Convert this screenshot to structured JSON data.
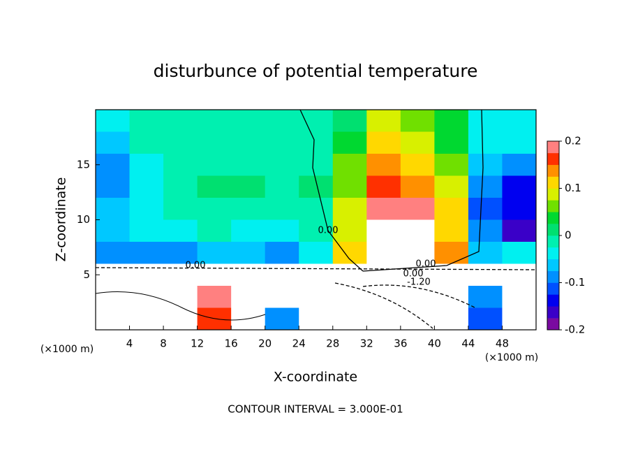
{
  "chart_data": {
    "type": "contour",
    "title": "disturbunce of potential temperature",
    "x_label": "X-coordinate",
    "y_label": "Z-coordinate",
    "x_unit": "(×1000 m)",
    "footer": "CONTOUR INTERVAL = 3.000E-01",
    "contour_labels": [
      "0.00",
      "0.00",
      "0.00",
      "0.00",
      "-1.20"
    ],
    "xlim": [
      0,
      52
    ],
    "ylim": [
      0,
      20
    ],
    "xticks": [
      4,
      8,
      12,
      16,
      20,
      24,
      28,
      32,
      36,
      40,
      44,
      48
    ],
    "yticks": [
      5,
      10,
      15
    ],
    "x": [
      2,
      6,
      10,
      14,
      18,
      22,
      26,
      30,
      34,
      38,
      42,
      46,
      50
    ],
    "y": [
      19,
      17,
      15,
      13,
      11,
      9,
      7,
      5,
      3,
      1
    ],
    "z": [
      [
        -0.03,
        -0.02,
        -0.02,
        -0.02,
        -0.02,
        -0.02,
        -0.02,
        0.02,
        0.08,
        0.05,
        0.03,
        -0.03,
        -0.04
      ],
      [
        -0.06,
        -0.02,
        -0.01,
        -0.01,
        -0.01,
        -0.01,
        -0.01,
        0.04,
        0.1,
        0.08,
        0.03,
        -0.04,
        -0.05
      ],
      [
        -0.08,
        -0.03,
        -0.01,
        -0.01,
        -0.01,
        -0.01,
        -0.01,
        0.05,
        0.13,
        0.12,
        0.05,
        -0.07,
        -0.09
      ],
      [
        -0.08,
        -0.03,
        -0.01,
        0,
        0,
        -0.01,
        0,
        0.07,
        0.16,
        0.15,
        0.08,
        -0.1,
        -0.13
      ],
      [
        -0.07,
        -0.04,
        -0.02,
        -0.01,
        -0.01,
        -0.02,
        -0.01,
        0.08,
        0.18,
        0.19,
        0.1,
        -0.11,
        -0.15
      ],
      [
        -0.06,
        -0.05,
        -0.04,
        -0.02,
        -0.03,
        -0.04,
        -0.02,
        0.09,
        0.2,
        0.23,
        0.12,
        -0.1,
        -0.16
      ],
      [
        -0.1,
        -0.1,
        -0.08,
        -0.06,
        -0.07,
        -0.08,
        -0.05,
        0.12,
        0.22,
        0.25,
        0.14,
        -0.06,
        -0.05
      ],
      [
        0.3,
        0.3,
        0.3,
        0.3,
        0.3,
        0.3,
        0.3,
        0.3,
        0.3,
        0.3,
        0.3,
        0.3,
        0.3
      ],
      [
        0.3,
        0.3,
        0.3,
        0.18,
        0.3,
        0.3,
        0.3,
        0.3,
        0.3,
        0.3,
        0.3,
        -0.08,
        0.3
      ],
      [
        0.3,
        0.3,
        0.3,
        0.17,
        0.3,
        -0.1,
        0.3,
        0.3,
        0.3,
        0.3,
        0.3,
        -0.12,
        0.3
      ]
    ],
    "colorbar": {
      "clim": [
        -0.2,
        0.2
      ],
      "ticks": [
        -0.2,
        -0.1,
        0,
        0.1,
        0.2
      ],
      "colors": [
        "#7a0aa0",
        "#3a00c8",
        "#0000f0",
        "#0050ff",
        "#0090ff",
        "#00c8ff",
        "#00f0f0",
        "#00f0b0",
        "#00e070",
        "#00d830",
        "#70e000",
        "#d8f000",
        "#ffd800",
        "#ff9000",
        "#ff3000",
        "#ff8080"
      ],
      "over_color": "#ffffff"
    }
  }
}
